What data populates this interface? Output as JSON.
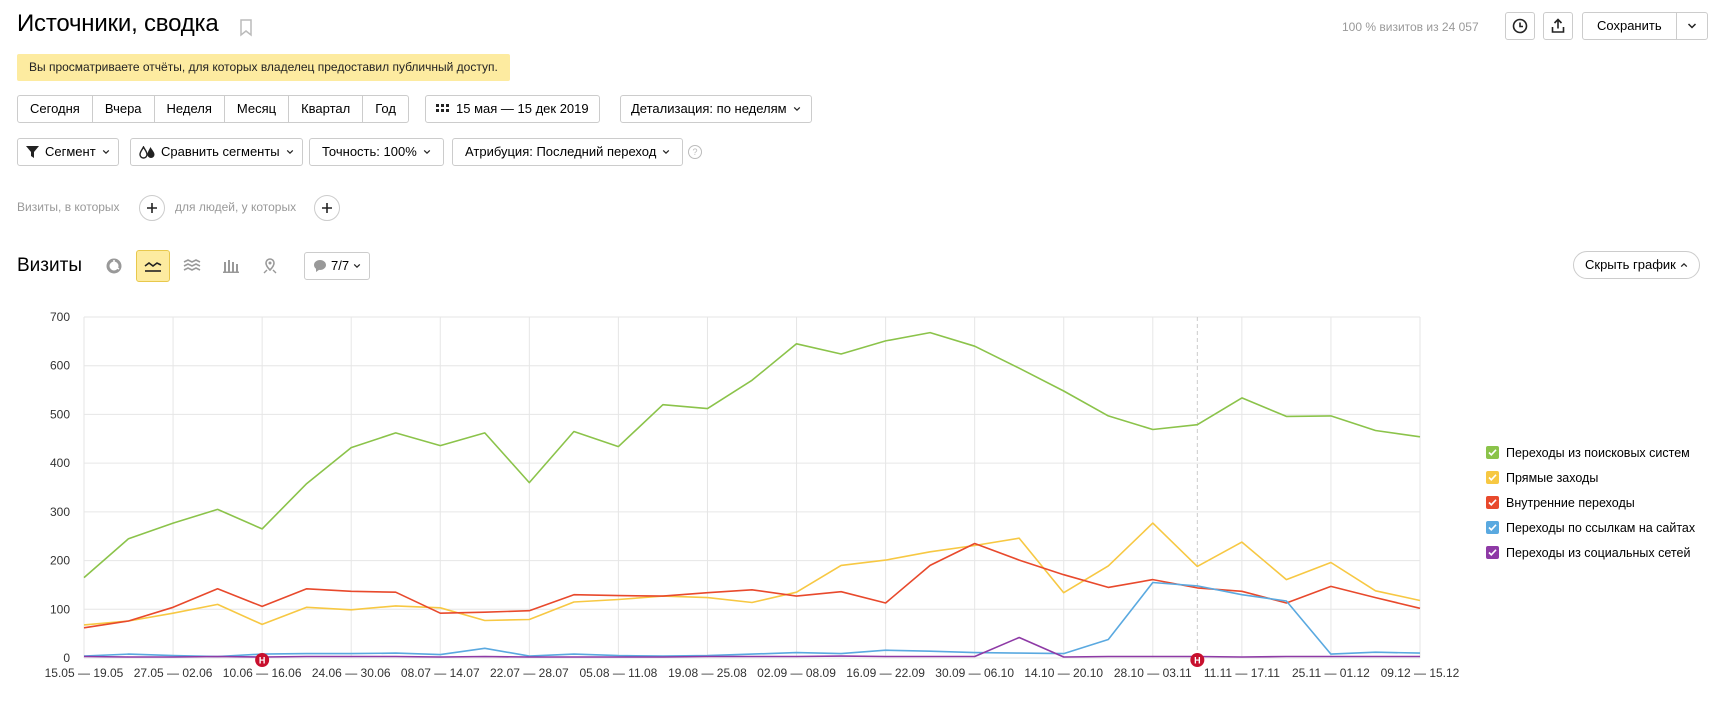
{
  "header": {
    "title": "Источники, сводка",
    "visits_share": "100 % визитов из 24 057",
    "save_label": "Сохранить"
  },
  "notice": "Вы просматриваете отчёты, для которых владелец предоставил публичный доступ.",
  "periods": [
    "Сегодня",
    "Вчера",
    "Неделя",
    "Месяц",
    "Квартал",
    "Год"
  ],
  "date_range": "15 мая — 15 дек 2019",
  "detail": "Детализация: по неделям",
  "toolbar": {
    "segment": "Сегмент",
    "compare": "Сравнить сегменты",
    "accuracy": "Точность: 100%",
    "attribution": "Атрибуция: Последний переход",
    "help": "?"
  },
  "filters": {
    "visits_where": "Визиты, в которых",
    "people_where": "для людей, у которых"
  },
  "chart_section": {
    "label": "Визиты",
    "annotations": "7/7",
    "hide_chart": "Скрыть график",
    "marker_label": "Н"
  },
  "colors": {
    "green": "#8bc34a",
    "yellow": "#f7c843",
    "red": "#e8492c",
    "blue": "#5aa9e0",
    "purple": "#8e3aa6",
    "accent": "#fdeba0"
  },
  "chart_data": {
    "type": "line",
    "ylim": [
      0,
      700
    ],
    "yticks": [
      0,
      100,
      200,
      300,
      400,
      500,
      600,
      700
    ],
    "categories": [
      "15.05 — 19.05",
      "20.05 — 26.05",
      "27.05 — 02.06",
      "03.06 — 09.06",
      "10.06 — 16.06",
      "17.06 — 23.06",
      "24.06 — 30.06",
      "01.07 — 07.07",
      "08.07 — 14.07",
      "15.07 — 21.07",
      "22.07 — 28.07",
      "29.07 — 04.08",
      "05.08 — 11.08",
      "12.08 — 18.08",
      "19.08 — 25.08",
      "26.08 — 01.09",
      "02.09 — 08.09",
      "09.09 — 15.09",
      "16.09 — 22.09",
      "23.09 — 29.09",
      "30.09 — 06.10",
      "07.10 — 13.10",
      "14.10 — 20.10",
      "21.10 — 27.10",
      "28.10 — 03.11",
      "04.11 — 10.11",
      "11.11 — 17.11",
      "18.11 — 24.11",
      "25.11 — 01.12",
      "02.12 — 08.12",
      "09.12 — 15.12"
    ],
    "xtick_labels": [
      "15.05 — 19.05",
      "27.05 — 02.06",
      "10.06 — 16.06",
      "24.06 — 30.06",
      "08.07 — 14.07",
      "22.07 — 28.07",
      "05.08 — 11.08",
      "19.08 — 25.08",
      "02.09 — 08.09",
      "16.09 — 22.09",
      "30.09 — 06.10",
      "14.10 — 20.10",
      "28.10 — 03.11",
      "11.11 — 17.11",
      "25.11 — 01.12",
      "09.12 — 15.12"
    ],
    "series": [
      {
        "name": "Переходы из поисковых систем",
        "color": "#8bc34a",
        "values": [
          165,
          245,
          277,
          305,
          265,
          358,
          432,
          462,
          436,
          462,
          360,
          465,
          434,
          520,
          512,
          570,
          645,
          624,
          651,
          668,
          640,
          595,
          548,
          497,
          469,
          479,
          534,
          496,
          497,
          467,
          454
        ]
      },
      {
        "name": "Прямые заходы",
        "color": "#f7c843",
        "values": [
          68,
          76,
          92,
          110,
          69,
          104,
          99,
          107,
          103,
          77,
          79,
          115,
          120,
          127,
          124,
          114,
          135,
          190,
          201,
          218,
          231,
          246,
          134,
          189,
          277,
          188,
          238,
          161,
          196,
          138,
          118
        ]
      },
      {
        "name": "Внутренние переходы",
        "color": "#e8492c",
        "values": [
          62,
          76,
          104,
          142,
          106,
          142,
          137,
          135,
          92,
          94,
          97,
          130,
          128,
          127,
          134,
          140,
          127,
          136,
          113,
          190,
          235,
          201,
          171,
          145,
          161,
          144,
          137,
          113,
          147,
          124,
          102
        ]
      },
      {
        "name": "Переходы по ссылкам на сайтах",
        "color": "#5aa9e0",
        "values": [
          4,
          8,
          5,
          3,
          8,
          9,
          9,
          10,
          7,
          20,
          4,
          8,
          5,
          4,
          5,
          8,
          11,
          9,
          16,
          14,
          11,
          10,
          9,
          38,
          155,
          148,
          130,
          117,
          8,
          12,
          10
        ]
      },
      {
        "name": "Переходы из социальных сетей",
        "color": "#8e3aa6",
        "values": [
          3,
          2,
          2,
          3,
          2,
          3,
          3,
          3,
          2,
          3,
          2,
          2,
          2,
          2,
          3,
          3,
          3,
          4,
          3,
          3,
          3,
          42,
          2,
          3,
          3,
          3,
          2,
          3,
          3,
          3,
          3
        ]
      }
    ],
    "markers": [
      4,
      25
    ],
    "grid": true,
    "legend_position": "right"
  }
}
